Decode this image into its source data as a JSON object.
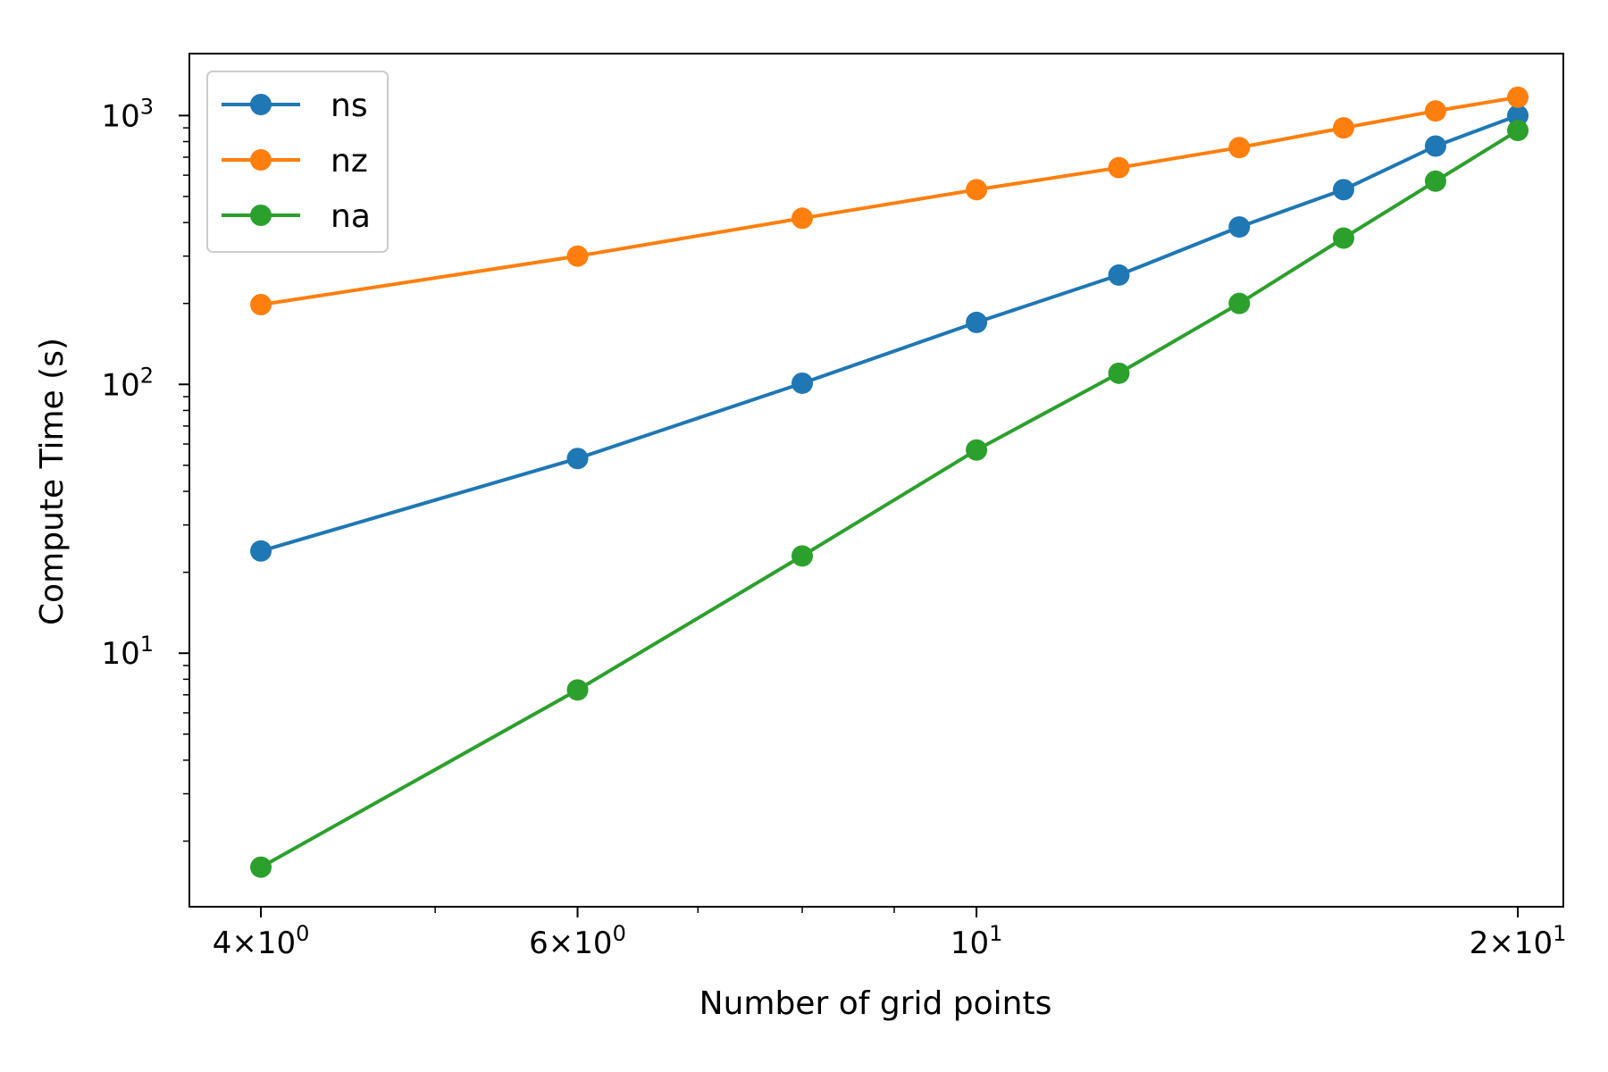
{
  "chart_data": {
    "type": "line",
    "xlabel": "Number of grid points",
    "ylabel": "Compute Time (s)",
    "x_scale": "log",
    "y_scale": "log",
    "xlim": [
      3.65,
      21.2
    ],
    "ylim": [
      1.14,
      1700
    ],
    "grid": false,
    "legend_position": "top-left",
    "x": [
      4,
      6,
      8,
      10,
      12,
      14,
      16,
      18,
      20
    ],
    "x_ticks": [
      {
        "value": 4,
        "mant": "4",
        "exp": "0"
      },
      {
        "value": 6,
        "mant": "6",
        "exp": "0"
      },
      {
        "value": 10,
        "mant": "",
        "exp": "1"
      },
      {
        "value": 20,
        "mant": "2",
        "exp": "1"
      }
    ],
    "x_minor_ticks": [
      5,
      7,
      8,
      9
    ],
    "y_ticks": [
      {
        "value": 10,
        "exp": "1"
      },
      {
        "value": 100,
        "exp": "2"
      },
      {
        "value": 1000,
        "exp": "3"
      }
    ],
    "y_minor_ticks": [
      2,
      3,
      4,
      5,
      6,
      7,
      8,
      9,
      20,
      30,
      40,
      50,
      60,
      70,
      80,
      90,
      200,
      300,
      400,
      500,
      600,
      700,
      800,
      900
    ],
    "series": [
      {
        "name": "ns",
        "color": "#1f77b4",
        "values": [
          24,
          53,
          101,
          170,
          255,
          385,
          530,
          770,
          1000
        ]
      },
      {
        "name": "nz",
        "color": "#ff7f0e",
        "values": [
          198,
          300,
          415,
          530,
          640,
          760,
          900,
          1040,
          1170
        ]
      },
      {
        "name": "na",
        "color": "#2ca02c",
        "values": [
          1.6,
          7.3,
          23,
          57,
          110,
          200,
          350,
          570,
          880
        ]
      }
    ]
  }
}
